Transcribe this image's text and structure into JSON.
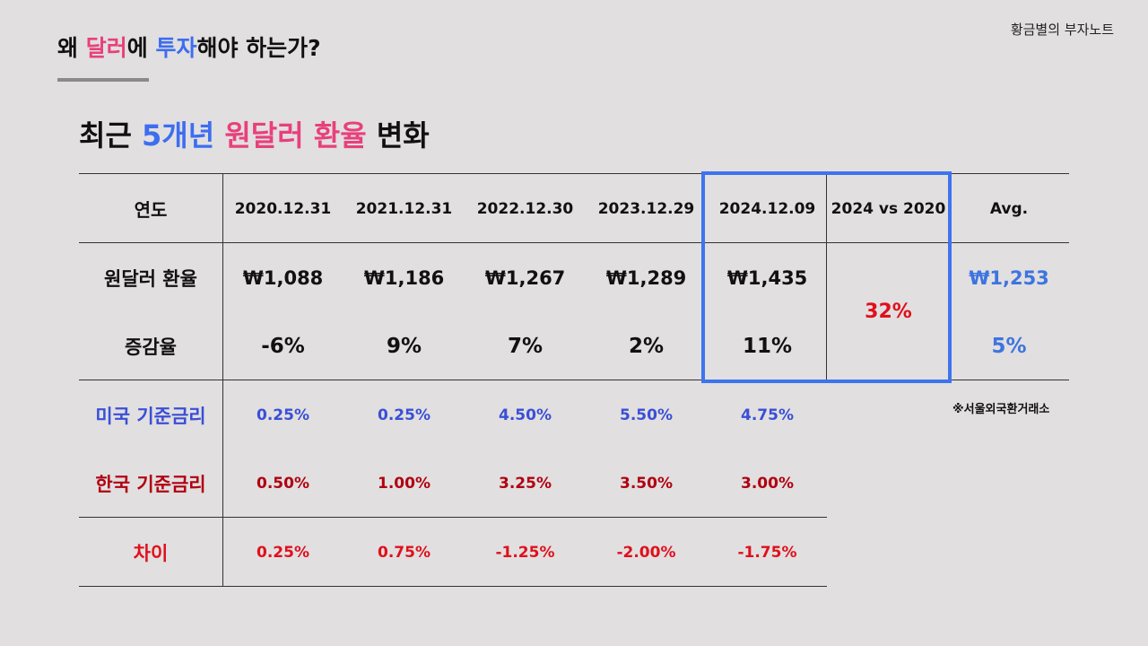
{
  "brand": "황금별의 부자노트",
  "title": {
    "parts": [
      "왜 ",
      "달러",
      "에 ",
      "투자",
      "해야 하는가?"
    ]
  },
  "subtitle": {
    "parts": [
      "최근 ",
      "5개년",
      " ",
      "원달러 환율",
      " 변화"
    ]
  },
  "table": {
    "header_label": "연도",
    "dates": [
      "2020.12.31",
      "2021.12.31",
      "2022.12.30",
      "2023.12.29",
      "2024.12.09"
    ],
    "comparison_header": "2024 vs 2020",
    "avg_header": "Avg.",
    "exchange_rate": {
      "label": "원달러 환율",
      "values": [
        "₩1,088",
        "₩1,186",
        "₩1,267",
        "₩1,289",
        "₩1,435"
      ],
      "avg": "₩1,253"
    },
    "change_rate": {
      "label": "증감율",
      "values": [
        "-6%",
        "9%",
        "7%",
        "2%",
        "11%"
      ],
      "avg": "5%"
    },
    "comparison_value": "32%",
    "us_rate": {
      "label": "미국 기준금리",
      "values": [
        "0.25%",
        "0.25%",
        "4.50%",
        "5.50%",
        "4.75%"
      ]
    },
    "kr_rate": {
      "label": "한국 기준금리",
      "values": [
        "0.50%",
        "1.00%",
        "3.25%",
        "3.50%",
        "3.00%"
      ]
    },
    "diff": {
      "label": "차이",
      "values": [
        "0.25%",
        "0.75%",
        "-1.25%",
        "-2.00%",
        "-1.75%"
      ]
    }
  },
  "source_note": "※서울외국환거래소",
  "colors": {
    "background": "#e1dfe0",
    "pink": "#e8407b",
    "blue": "#3d6ef0",
    "highlight_border": "#3d74ee",
    "us_rate": "#3a4fd6",
    "kr_rate": "#b00010",
    "diff": "#e0101c"
  }
}
